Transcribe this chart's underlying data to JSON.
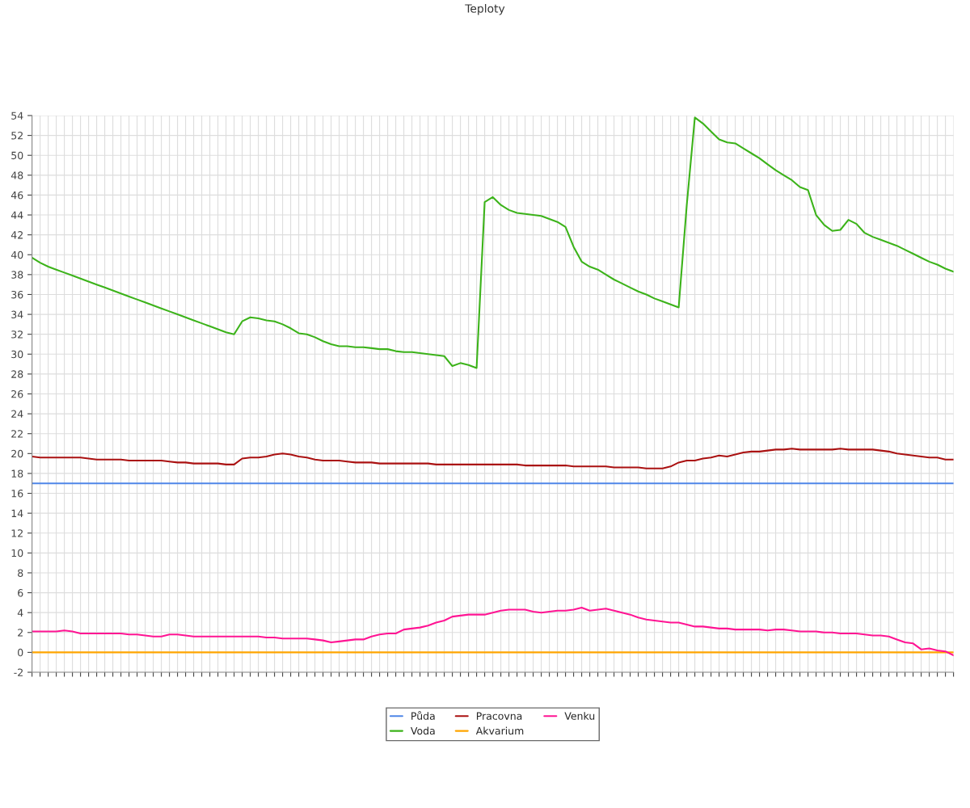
{
  "chart_data": {
    "type": "line",
    "title": "Teploty",
    "categories": [
      null,
      null,
      null,
      null,
      null,
      null,
      null,
      null,
      null,
      null,
      null,
      null,
      null,
      null,
      null,
      null,
      null,
      null,
      null,
      null,
      null,
      null,
      null,
      null,
      null,
      null,
      null,
      null,
      null,
      null,
      null,
      null,
      null,
      null,
      null,
      null,
      null,
      null,
      null,
      null,
      null,
      null,
      null,
      null,
      null,
      null,
      null,
      null,
      null,
      null,
      null,
      null,
      null,
      null,
      null,
      null,
      null,
      null,
      null,
      null,
      null,
      null,
      null,
      null,
      null,
      null,
      null,
      null,
      null,
      null,
      null,
      null,
      null,
      null,
      null,
      null,
      null,
      null,
      null,
      null,
      null,
      null,
      null,
      null,
      null,
      null,
      null,
      null,
      null,
      null,
      null,
      null,
      null,
      null,
      null,
      null,
      null,
      null,
      null,
      null,
      null,
      null,
      null,
      null,
      null,
      null,
      null,
      null,
      null,
      null,
      null,
      null,
      null,
      null,
      null
    ],
    "series": [
      {
        "name": "Půda",
        "color": "#4f86e8",
        "values": [
          17,
          17,
          17,
          17,
          17,
          17,
          17,
          17,
          17,
          17,
          17,
          17,
          17,
          17,
          17,
          17,
          17,
          17,
          17,
          17,
          17,
          17,
          17,
          17,
          17,
          17,
          17,
          17,
          17,
          17,
          17,
          17,
          17,
          17,
          17,
          17,
          17,
          17,
          17,
          17,
          17,
          17,
          17,
          17,
          17,
          17,
          17,
          17,
          17,
          17,
          17,
          17,
          17,
          17,
          17,
          17,
          17,
          17,
          17,
          17,
          17,
          17,
          17,
          17,
          17,
          17,
          17,
          17,
          17,
          17,
          17,
          17,
          17,
          17,
          17,
          17,
          17,
          17,
          17,
          17,
          17,
          17,
          17,
          17,
          17,
          17,
          17,
          17,
          17,
          17,
          17,
          17,
          17,
          17,
          17,
          17,
          17,
          17,
          17,
          17,
          17,
          17,
          17,
          17,
          17,
          17,
          17,
          17,
          17,
          17,
          17,
          17,
          17,
          17,
          17
        ]
      },
      {
        "name": "Voda",
        "color": "#3cb31a",
        "values": [
          39.7,
          39.2,
          38.8,
          38.5,
          38.2,
          37.9,
          37.6,
          37.3,
          37.0,
          36.7,
          36.4,
          36.1,
          35.8,
          35.5,
          35.2,
          34.9,
          34.6,
          34.3,
          34.0,
          33.7,
          33.4,
          33.1,
          32.8,
          32.5,
          32.2,
          32.0,
          33.3,
          33.7,
          33.6,
          33.4,
          33.3,
          33.0,
          32.6,
          32.1,
          32.0,
          31.7,
          31.3,
          31.0,
          30.8,
          30.8,
          30.7,
          30.7,
          30.6,
          30.5,
          30.5,
          30.3,
          30.2,
          30.2,
          30.1,
          30.0,
          29.9,
          29.8,
          28.8,
          29.1,
          28.9,
          28.6,
          45.3,
          45.8,
          45.0,
          44.5,
          44.2,
          44.1,
          44.0,
          43.9,
          43.6,
          43.3,
          42.8,
          40.8,
          39.3,
          38.8,
          38.5,
          38.0,
          37.5,
          37.1,
          36.7,
          36.3,
          36.0,
          35.6,
          35.3,
          35.0,
          34.7,
          45.0,
          53.8,
          53.2,
          52.4,
          51.6,
          51.3,
          51.2,
          50.7,
          50.2,
          49.7,
          49.1,
          48.5,
          48.0,
          47.5,
          46.8,
          46.5,
          44.0,
          43.0,
          42.4,
          42.5,
          43.5,
          43.1,
          42.2,
          41.8,
          41.5,
          41.2,
          40.9,
          40.5,
          40.1,
          39.7,
          39.3,
          39.0,
          38.6,
          38.3
        ]
      },
      {
        "name": "Pracovna",
        "color": "#aa1111",
        "values": [
          19.7,
          19.6,
          19.6,
          19.6,
          19.6,
          19.6,
          19.6,
          19.5,
          19.4,
          19.4,
          19.4,
          19.4,
          19.3,
          19.3,
          19.3,
          19.3,
          19.3,
          19.2,
          19.1,
          19.1,
          19.0,
          19.0,
          19.0,
          19.0,
          18.9,
          18.9,
          19.5,
          19.6,
          19.6,
          19.7,
          19.9,
          20.0,
          19.9,
          19.7,
          19.6,
          19.4,
          19.3,
          19.3,
          19.3,
          19.2,
          19.1,
          19.1,
          19.1,
          19.0,
          19.0,
          19.0,
          19.0,
          19.0,
          19.0,
          19.0,
          18.9,
          18.9,
          18.9,
          18.9,
          18.9,
          18.9,
          18.9,
          18.9,
          18.9,
          18.9,
          18.9,
          18.8,
          18.8,
          18.8,
          18.8,
          18.8,
          18.8,
          18.7,
          18.7,
          18.7,
          18.7,
          18.7,
          18.6,
          18.6,
          18.6,
          18.6,
          18.5,
          18.5,
          18.5,
          18.7,
          19.1,
          19.3,
          19.3,
          19.5,
          19.6,
          19.8,
          19.7,
          19.9,
          20.1,
          20.2,
          20.2,
          20.3,
          20.4,
          20.4,
          20.5,
          20.4,
          20.4,
          20.4,
          20.4,
          20.4,
          20.5,
          20.4,
          20.4,
          20.4,
          20.4,
          20.3,
          20.2,
          20.0,
          19.9,
          19.8,
          19.7,
          19.6,
          19.6,
          19.4,
          19.4
        ]
      },
      {
        "name": "Akvarium",
        "color": "#ffa500",
        "values": [
          0,
          0,
          0,
          0,
          0,
          0,
          0,
          0,
          0,
          0,
          0,
          0,
          0,
          0,
          0,
          0,
          0,
          0,
          0,
          0,
          0,
          0,
          0,
          0,
          0,
          0,
          0,
          0,
          0,
          0,
          0,
          0,
          0,
          0,
          0,
          0,
          0,
          0,
          0,
          0,
          0,
          0,
          0,
          0,
          0,
          0,
          0,
          0,
          0,
          0,
          0,
          0,
          0,
          0,
          0,
          0,
          0,
          0,
          0,
          0,
          0,
          0,
          0,
          0,
          0,
          0,
          0,
          0,
          0,
          0,
          0,
          0,
          0,
          0,
          0,
          0,
          0,
          0,
          0,
          0,
          0,
          0,
          0,
          0,
          0,
          0,
          0,
          0,
          0,
          0,
          0,
          0,
          0,
          0,
          0,
          0,
          0,
          0,
          0,
          0,
          0,
          0,
          0,
          0,
          0,
          0,
          0,
          0,
          0,
          0,
          0,
          0,
          0,
          0,
          0
        ]
      },
      {
        "name": "Venku",
        "color": "#ff1493",
        "values": [
          2.1,
          2.1,
          2.1,
          2.1,
          2.2,
          2.1,
          1.9,
          1.9,
          1.9,
          1.9,
          1.9,
          1.9,
          1.8,
          1.8,
          1.7,
          1.6,
          1.6,
          1.8,
          1.8,
          1.7,
          1.6,
          1.6,
          1.6,
          1.6,
          1.6,
          1.6,
          1.6,
          1.6,
          1.6,
          1.5,
          1.5,
          1.4,
          1.4,
          1.4,
          1.4,
          1.3,
          1.2,
          1.0,
          1.1,
          1.2,
          1.3,
          1.3,
          1.6,
          1.8,
          1.9,
          1.9,
          2.3,
          2.4,
          2.5,
          2.7,
          3.0,
          3.2,
          3.6,
          3.7,
          3.8,
          3.8,
          3.8,
          4.0,
          4.2,
          4.3,
          4.3,
          4.3,
          4.1,
          4.0,
          4.1,
          4.2,
          4.2,
          4.3,
          4.5,
          4.2,
          4.3,
          4.4,
          4.2,
          4.0,
          3.8,
          3.5,
          3.3,
          3.2,
          3.1,
          3.0,
          3.0,
          2.8,
          2.6,
          2.6,
          2.5,
          2.4,
          2.4,
          2.3,
          2.3,
          2.3,
          2.3,
          2.2,
          2.3,
          2.3,
          2.2,
          2.1,
          2.1,
          2.1,
          2.0,
          2.0,
          1.9,
          1.9,
          1.9,
          1.8,
          1.7,
          1.7,
          1.6,
          1.3,
          1.0,
          0.9,
          0.3,
          0.4,
          0.2,
          0.1,
          -0.3
        ]
      }
    ],
    "ylim": [
      -2,
      54
    ],
    "yticks": [
      -2,
      0,
      2,
      4,
      6,
      8,
      10,
      12,
      14,
      16,
      18,
      20,
      22,
      24,
      26,
      28,
      30,
      32,
      34,
      36,
      38,
      40,
      42,
      44,
      46,
      48,
      50,
      52,
      54
    ],
    "grid": true,
    "legend": "bottom",
    "marker": "none",
    "line_style": "solid"
  }
}
